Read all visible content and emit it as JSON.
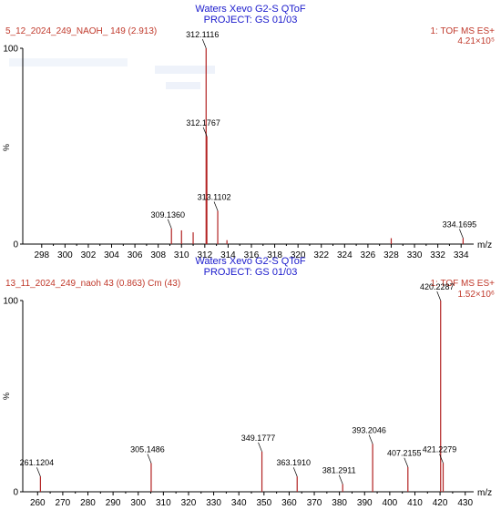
{
  "chart_data": [
    {
      "type": "bar",
      "title": "Waters Xevo G2-S QToF",
      "subtitle": "PROJECT: GS 01/03",
      "sample_label": "5_12_2024_249_NAOH_ 149 (2.913)",
      "mode_label": "1: TOF MS ES+",
      "intensity_label": "4.21×10⁵",
      "xlabel": "m/z",
      "ylabel": "%",
      "xlim": [
        297,
        335
      ],
      "ylim": [
        0,
        100
      ],
      "x_ticks": [
        "298",
        "300",
        "302",
        "304",
        "306",
        "308",
        "310",
        "312",
        "314",
        "316",
        "318",
        "320",
        "322",
        "324",
        "326",
        "328",
        "330",
        "332",
        "334"
      ],
      "y_ticks": [
        "0",
        "100"
      ],
      "peaks": [
        {
          "mz": 309.136,
          "value": 8,
          "label": "309.1360"
        },
        {
          "mz": 310.0,
          "value": 7,
          "label": ""
        },
        {
          "mz": 311.0,
          "value": 6,
          "label": ""
        },
        {
          "mz": 312.1116,
          "value": 100,
          "label": "312.1116"
        },
        {
          "mz": 312.1767,
          "value": 55,
          "label": "312.1767"
        },
        {
          "mz": 313.1102,
          "value": 17,
          "label": "313.1102"
        },
        {
          "mz": 313.9,
          "value": 2,
          "label": ""
        },
        {
          "mz": 328.0,
          "value": 3,
          "label": ""
        },
        {
          "mz": 334.1695,
          "value": 3,
          "label": "334.1695"
        }
      ]
    },
    {
      "type": "bar",
      "title": "Waters Xevo G2-S QToF",
      "subtitle": "PROJECT: GS 01/03",
      "sample_label": "13_11_2024_249_naoh 43 (0.863) Cm (43)",
      "mode_label": "1: TOF MS ES+",
      "intensity_label": "1.52×10⁶",
      "xlabel": "m/z",
      "ylabel": "%",
      "xlim": [
        257,
        433
      ],
      "ylim": [
        0,
        100
      ],
      "x_ticks": [
        "260",
        "270",
        "280",
        "290",
        "300",
        "310",
        "320",
        "330",
        "340",
        "350",
        "360",
        "370",
        "380",
        "390",
        "400",
        "410",
        "420",
        "430"
      ],
      "y_ticks": [
        "0",
        "100"
      ],
      "peaks": [
        {
          "mz": 261.1204,
          "value": 8,
          "label": "261.1204"
        },
        {
          "mz": 305.1486,
          "value": 15,
          "label": "305.1486"
        },
        {
          "mz": 349.1777,
          "value": 21,
          "label": "349.1777"
        },
        {
          "mz": 363.191,
          "value": 8,
          "label": "363.1910"
        },
        {
          "mz": 381.2911,
          "value": 4,
          "label": "381.2911"
        },
        {
          "mz": 393.2046,
          "value": 25,
          "label": "393.2046"
        },
        {
          "mz": 407.2155,
          "value": 13,
          "label": "407.2155"
        },
        {
          "mz": 420.2287,
          "value": 100,
          "label": "420.2287"
        },
        {
          "mz": 421.2279,
          "value": 15,
          "label": "421.2279"
        }
      ]
    }
  ]
}
